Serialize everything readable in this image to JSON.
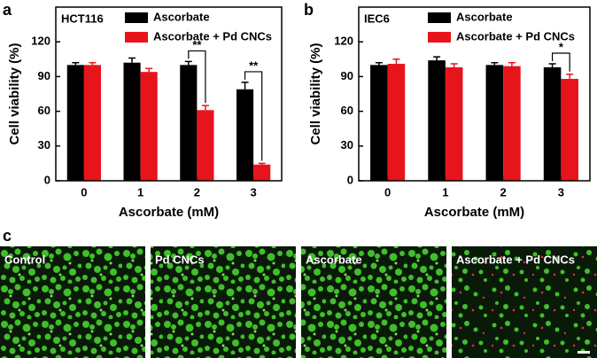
{
  "panels": [
    "a",
    "b",
    "c"
  ],
  "chart_data": [
    {
      "type": "bar",
      "annotation": "HCT116",
      "x_label": "Ascorbate (mM)",
      "y_label": "Cell viability (%)",
      "categories": [
        "0",
        "1",
        "2",
        "3"
      ],
      "series": [
        {
          "name": "Ascorbate",
          "color": "#000000",
          "values": [
            100,
            102,
            100,
            79
          ],
          "errors": [
            2,
            4,
            3,
            6
          ]
        },
        {
          "name": "Ascorbate + Pd CNCs",
          "color": "#e8141b",
          "values": [
            100,
            94,
            61,
            14
          ],
          "errors": [
            2,
            3,
            4,
            1
          ]
        }
      ],
      "significance": [
        {
          "label": "**",
          "category": "2"
        },
        {
          "label": "**",
          "category": "3"
        }
      ],
      "ylim": [
        0,
        150
      ],
      "yticks": [
        0,
        30,
        60,
        90,
        120
      ]
    },
    {
      "type": "bar",
      "annotation": "IEC6",
      "x_label": "Ascorbate (mM)",
      "y_label": "Cell viability (%)",
      "categories": [
        "0",
        "1",
        "2",
        "3"
      ],
      "series": [
        {
          "name": "Ascorbate",
          "color": "#000000",
          "values": [
            100,
            104,
            100,
            98
          ],
          "errors": [
            2,
            3,
            2,
            3
          ]
        },
        {
          "name": "Ascorbate + Pd CNCs",
          "color": "#e8141b",
          "values": [
            101,
            98,
            99,
            88
          ],
          "errors": [
            4,
            3,
            3,
            4
          ]
        }
      ],
      "significance": [
        {
          "label": "*",
          "category": "3"
        }
      ],
      "ylim": [
        0,
        150
      ],
      "yticks": [
        0,
        30,
        60,
        90,
        120
      ]
    }
  ],
  "images": [
    "Control",
    "Pd CNCs",
    "Ascorbate",
    "Ascorbate + Pd CNCs"
  ]
}
